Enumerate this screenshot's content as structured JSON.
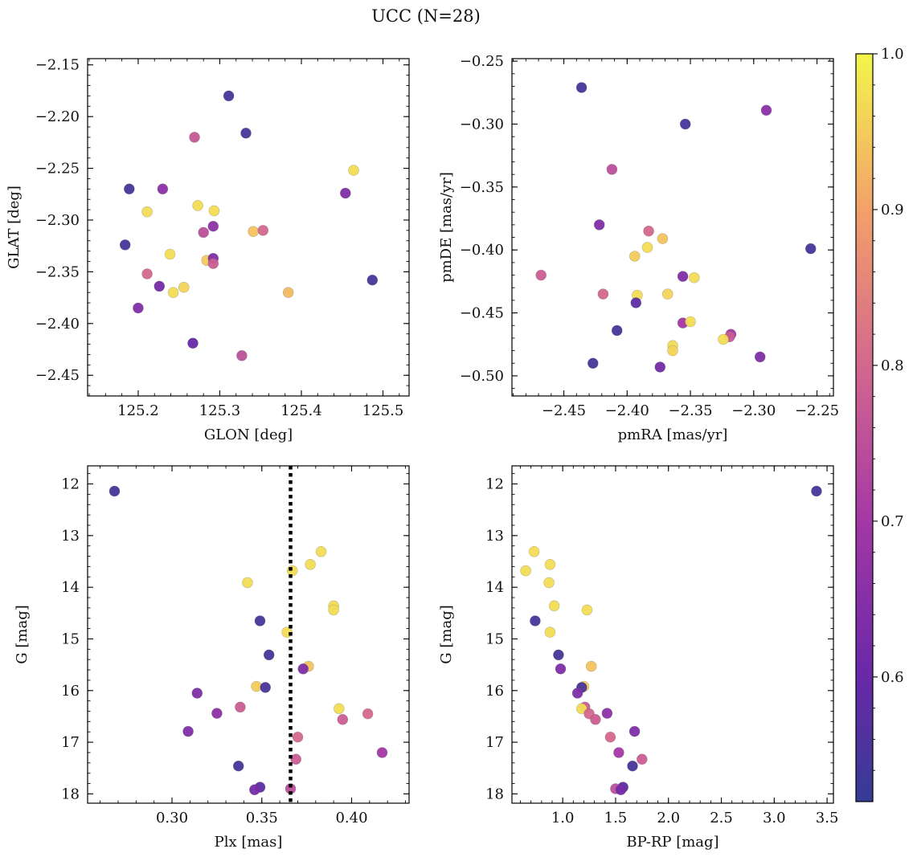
{
  "title": "UCC (N=28)",
  "colorbar": {
    "colormap": "plasma",
    "range": [
      0.52,
      1.0
    ],
    "ticks": [
      0.6,
      0.7,
      0.8,
      0.9,
      1.0
    ],
    "tick_labels": [
      "0.6",
      "0.7",
      "0.8",
      "0.9",
      "1.0"
    ]
  },
  "chart_data": [
    {
      "type": "scatter",
      "name": "glon-glat",
      "xlabel": "GLON [deg]",
      "ylabel": "GLAT [deg]",
      "xlim": [
        125.138,
        125.532
      ],
      "ylim": [
        -2.47,
        -2.144
      ],
      "y_inverted": false,
      "xticks": [
        125.2,
        125.3,
        125.4,
        125.5
      ],
      "xtick_labels": [
        "125.2",
        "125.3",
        "125.4",
        "125.5"
      ],
      "yticks": [
        -2.45,
        -2.4,
        -2.35,
        -2.3,
        -2.25,
        -2.2,
        -2.15
      ],
      "ytick_labels": [
        "−2.45",
        "−2.40",
        "−2.35",
        "−2.30",
        "−2.25",
        "−2.20",
        "−2.15"
      ],
      "points": [
        {
          "x": 125.311,
          "y": -2.18,
          "c": 0.55
        },
        {
          "x": 125.332,
          "y": -2.216,
          "c": 0.55
        },
        {
          "x": 125.269,
          "y": -2.22,
          "c": 0.77
        },
        {
          "x": 125.189,
          "y": -2.27,
          "c": 0.55
        },
        {
          "x": 125.23,
          "y": -2.27,
          "c": 0.66
        },
        {
          "x": 125.464,
          "y": -2.252,
          "c": 0.97
        },
        {
          "x": 125.454,
          "y": -2.274,
          "c": 0.64
        },
        {
          "x": 125.211,
          "y": -2.292,
          "c": 0.97
        },
        {
          "x": 125.273,
          "y": -2.286,
          "c": 0.97
        },
        {
          "x": 125.293,
          "y": -2.291,
          "c": 0.97
        },
        {
          "x": 125.292,
          "y": -2.306,
          "c": 0.66
        },
        {
          "x": 125.28,
          "y": -2.312,
          "c": 0.75
        },
        {
          "x": 125.341,
          "y": -2.311,
          "c": 0.94
        },
        {
          "x": 125.353,
          "y": -2.31,
          "c": 0.8
        },
        {
          "x": 125.184,
          "y": -2.324,
          "c": 0.55
        },
        {
          "x": 125.239,
          "y": -2.333,
          "c": 0.97
        },
        {
          "x": 125.284,
          "y": -2.339,
          "c": 0.95
        },
        {
          "x": 125.292,
          "y": -2.337,
          "c": 0.64
        },
        {
          "x": 125.292,
          "y": -2.342,
          "c": 0.78
        },
        {
          "x": 125.211,
          "y": -2.352,
          "c": 0.8
        },
        {
          "x": 125.487,
          "y": -2.358,
          "c": 0.55
        },
        {
          "x": 125.226,
          "y": -2.364,
          "c": 0.62
        },
        {
          "x": 125.256,
          "y": -2.365,
          "c": 0.96
        },
        {
          "x": 125.243,
          "y": -2.37,
          "c": 0.97
        },
        {
          "x": 125.384,
          "y": -2.37,
          "c": 0.93
        },
        {
          "x": 125.2,
          "y": -2.385,
          "c": 0.64
        },
        {
          "x": 125.267,
          "y": -2.419,
          "c": 0.6
        },
        {
          "x": 125.327,
          "y": -2.431,
          "c": 0.75
        }
      ]
    },
    {
      "type": "scatter",
      "name": "pmra-pmde",
      "xlabel": "pmRA [mas/yr]",
      "ylabel": "pmDE [mas/yr]",
      "xlim": [
        -2.491,
        -2.237
      ],
      "ylim": [
        -0.516,
        -0.248
      ],
      "y_inverted": false,
      "xticks": [
        -2.45,
        -2.4,
        -2.35,
        -2.3,
        -2.25
      ],
      "xtick_labels": [
        "−2.45",
        "−2.40",
        "−2.35",
        "−2.30",
        "−2.25"
      ],
      "yticks": [
        -0.5,
        -0.45,
        -0.4,
        -0.35,
        -0.3,
        -0.25
      ],
      "ytick_labels": [
        "−0.50",
        "−0.45",
        "−0.40",
        "−0.35",
        "−0.30",
        "−0.25"
      ],
      "points": [
        {
          "x": -2.436,
          "y": -0.271,
          "c": 0.55
        },
        {
          "x": -2.354,
          "y": -0.3,
          "c": 0.55
        },
        {
          "x": -2.29,
          "y": -0.289,
          "c": 0.66
        },
        {
          "x": -2.412,
          "y": -0.336,
          "c": 0.75
        },
        {
          "x": -2.422,
          "y": -0.38,
          "c": 0.64
        },
        {
          "x": -2.383,
          "y": -0.385,
          "c": 0.8
        },
        {
          "x": -2.384,
          "y": -0.398,
          "c": 0.97
        },
        {
          "x": -2.372,
          "y": -0.391,
          "c": 0.94
        },
        {
          "x": -2.394,
          "y": -0.405,
          "c": 0.95
        },
        {
          "x": -2.255,
          "y": -0.399,
          "c": 0.55
        },
        {
          "x": -2.468,
          "y": -0.42,
          "c": 0.78
        },
        {
          "x": -2.356,
          "y": -0.421,
          "c": 0.64
        },
        {
          "x": -2.347,
          "y": -0.422,
          "c": 0.97
        },
        {
          "x": -2.419,
          "y": -0.435,
          "c": 0.8
        },
        {
          "x": -2.392,
          "y": -0.436,
          "c": 0.97
        },
        {
          "x": -2.368,
          "y": -0.435,
          "c": 0.96
        },
        {
          "x": -2.393,
          "y": -0.442,
          "c": 0.58
        },
        {
          "x": -2.356,
          "y": -0.458,
          "c": 0.7
        },
        {
          "x": -2.35,
          "y": -0.457,
          "c": 0.97
        },
        {
          "x": -2.408,
          "y": -0.464,
          "c": 0.55
        },
        {
          "x": -2.318,
          "y": -0.467,
          "c": 0.7
        },
        {
          "x": -2.319,
          "y": -0.469,
          "c": 0.78
        },
        {
          "x": -2.324,
          "y": -0.471,
          "c": 0.97
        },
        {
          "x": -2.364,
          "y": -0.476,
          "c": 0.97
        },
        {
          "x": -2.364,
          "y": -0.48,
          "c": 0.96
        },
        {
          "x": -2.295,
          "y": -0.485,
          "c": 0.64
        },
        {
          "x": -2.427,
          "y": -0.49,
          "c": 0.55
        },
        {
          "x": -2.374,
          "y": -0.493,
          "c": 0.62
        }
      ]
    },
    {
      "type": "scatter",
      "name": "plx-g",
      "xlabel": "Plx [mas]",
      "ylabel": "G [mag]",
      "xlim": [
        0.253,
        0.432
      ],
      "ylim": [
        11.65,
        18.18
      ],
      "y_inverted": true,
      "xticks": [
        0.3,
        0.35,
        0.4
      ],
      "xtick_labels": [
        "0.30",
        "0.35",
        "0.40"
      ],
      "yticks": [
        12,
        13,
        14,
        15,
        16,
        17,
        18
      ],
      "ytick_labels": [
        "12",
        "13",
        "14",
        "15",
        "16",
        "17",
        "18"
      ],
      "vline": {
        "x": 0.366,
        "style": "dotted",
        "color": "#000000"
      },
      "points": [
        {
          "x": 0.268,
          "y": 12.14,
          "c": 0.55
        },
        {
          "x": 0.383,
          "y": 13.31,
          "c": 0.97
        },
        {
          "x": 0.377,
          "y": 13.56,
          "c": 0.97
        },
        {
          "x": 0.367,
          "y": 13.68,
          "c": 0.97
        },
        {
          "x": 0.342,
          "y": 13.91,
          "c": 0.97
        },
        {
          "x": 0.39,
          "y": 14.36,
          "c": 0.97
        },
        {
          "x": 0.39,
          "y": 14.44,
          "c": 0.97
        },
        {
          "x": 0.349,
          "y": 14.65,
          "c": 0.55
        },
        {
          "x": 0.364,
          "y": 14.87,
          "c": 0.97
        },
        {
          "x": 0.354,
          "y": 15.31,
          "c": 0.55
        },
        {
          "x": 0.376,
          "y": 15.53,
          "c": 0.94
        },
        {
          "x": 0.373,
          "y": 15.58,
          "c": 0.64
        },
        {
          "x": 0.347,
          "y": 15.92,
          "c": 0.95
        },
        {
          "x": 0.352,
          "y": 15.94,
          "c": 0.55
        },
        {
          "x": 0.314,
          "y": 16.05,
          "c": 0.64
        },
        {
          "x": 0.338,
          "y": 16.32,
          "c": 0.78
        },
        {
          "x": 0.393,
          "y": 16.35,
          "c": 0.97
        },
        {
          "x": 0.325,
          "y": 16.44,
          "c": 0.66
        },
        {
          "x": 0.409,
          "y": 16.45,
          "c": 0.8
        },
        {
          "x": 0.395,
          "y": 16.56,
          "c": 0.78
        },
        {
          "x": 0.309,
          "y": 16.79,
          "c": 0.64
        },
        {
          "x": 0.37,
          "y": 16.9,
          "c": 0.8
        },
        {
          "x": 0.417,
          "y": 17.2,
          "c": 0.7
        },
        {
          "x": 0.369,
          "y": 17.33,
          "c": 0.78
        },
        {
          "x": 0.337,
          "y": 17.46,
          "c": 0.55
        },
        {
          "x": 0.349,
          "y": 17.87,
          "c": 0.58
        },
        {
          "x": 0.366,
          "y": 17.9,
          "c": 0.75
        },
        {
          "x": 0.346,
          "y": 17.92,
          "c": 0.62
        }
      ]
    },
    {
      "type": "scatter",
      "name": "bprp-g",
      "xlabel": "BP-RP [mag]",
      "ylabel": "G [mag]",
      "xlim": [
        0.52,
        3.56
      ],
      "ylim": [
        11.65,
        18.18
      ],
      "y_inverted": true,
      "xticks": [
        1.0,
        1.5,
        2.0,
        2.5,
        3.0,
        3.5
      ],
      "xtick_labels": [
        "1.0",
        "1.5",
        "2.0",
        "2.5",
        "3.0",
        "3.5"
      ],
      "yticks": [
        12,
        13,
        14,
        15,
        16,
        17,
        18
      ],
      "ytick_labels": [
        "12",
        "13",
        "14",
        "15",
        "16",
        "17",
        "18"
      ],
      "points": [
        {
          "x": 3.4,
          "y": 12.14,
          "c": 0.55
        },
        {
          "x": 0.73,
          "y": 13.31,
          "c": 0.97
        },
        {
          "x": 0.88,
          "y": 13.56,
          "c": 0.97
        },
        {
          "x": 0.65,
          "y": 13.68,
          "c": 0.97
        },
        {
          "x": 0.87,
          "y": 13.91,
          "c": 0.97
        },
        {
          "x": 0.92,
          "y": 14.36,
          "c": 0.97
        },
        {
          "x": 1.23,
          "y": 14.44,
          "c": 0.97
        },
        {
          "x": 0.74,
          "y": 14.65,
          "c": 0.55
        },
        {
          "x": 0.88,
          "y": 14.87,
          "c": 0.97
        },
        {
          "x": 0.96,
          "y": 15.31,
          "c": 0.55
        },
        {
          "x": 1.27,
          "y": 15.53,
          "c": 0.94
        },
        {
          "x": 0.98,
          "y": 15.58,
          "c": 0.64
        },
        {
          "x": 1.2,
          "y": 15.92,
          "c": 0.95
        },
        {
          "x": 1.18,
          "y": 15.94,
          "c": 0.55
        },
        {
          "x": 1.14,
          "y": 16.05,
          "c": 0.64
        },
        {
          "x": 1.21,
          "y": 16.32,
          "c": 0.78
        },
        {
          "x": 1.18,
          "y": 16.35,
          "c": 0.97
        },
        {
          "x": 1.42,
          "y": 16.44,
          "c": 0.66
        },
        {
          "x": 1.25,
          "y": 16.45,
          "c": 0.8
        },
        {
          "x": 1.31,
          "y": 16.56,
          "c": 0.78
        },
        {
          "x": 1.68,
          "y": 16.79,
          "c": 0.64
        },
        {
          "x": 1.45,
          "y": 16.9,
          "c": 0.8
        },
        {
          "x": 1.53,
          "y": 17.2,
          "c": 0.7
        },
        {
          "x": 1.75,
          "y": 17.33,
          "c": 0.78
        },
        {
          "x": 1.66,
          "y": 17.46,
          "c": 0.55
        },
        {
          "x": 1.57,
          "y": 17.87,
          "c": 0.58
        },
        {
          "x": 1.5,
          "y": 17.9,
          "c": 0.75
        },
        {
          "x": 1.55,
          "y": 17.92,
          "c": 0.62
        }
      ]
    }
  ]
}
